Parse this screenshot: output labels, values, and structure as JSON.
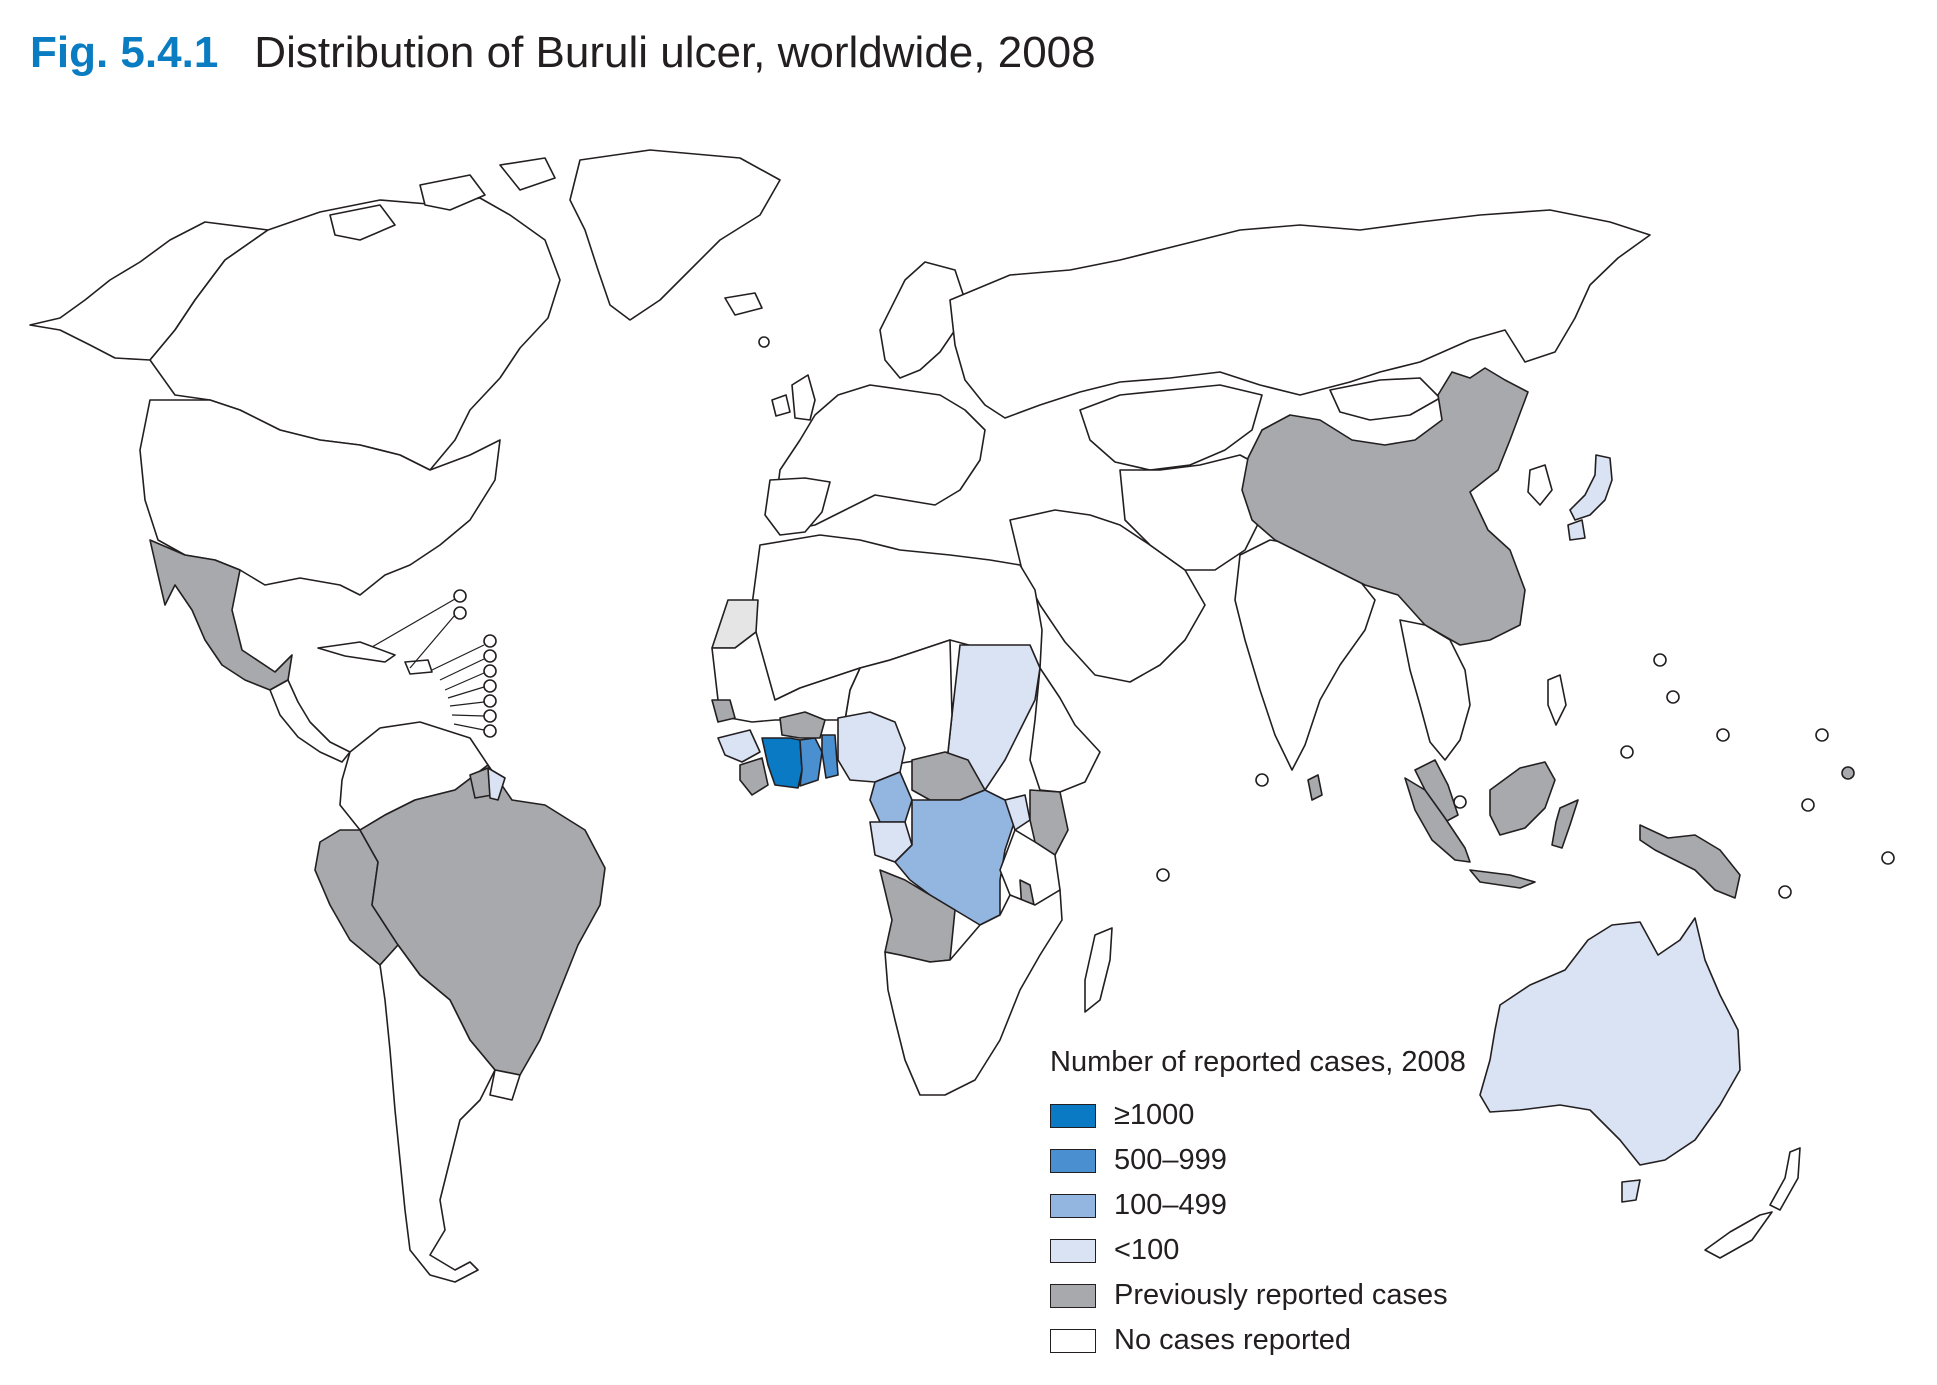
{
  "title": {
    "figure_number": "Fig. 5.4.1",
    "text": "Distribution of Buruli ulcer, worldwide, 2008"
  },
  "legend": {
    "title": "Number of reported cases, 2008",
    "items": [
      {
        "label": "≥1000",
        "color": "#0a7ac4"
      },
      {
        "label": "500–999",
        "color": "#4a8fd0"
      },
      {
        "label": "100–499",
        "color": "#93b6e1"
      },
      {
        "label": "<100",
        "color": "#d9e3f3"
      },
      {
        "label": "Previously reported cases",
        "color": "#a7a9ac"
      },
      {
        "label": "No cases reported",
        "color": "#ffffff"
      }
    ]
  },
  "colors": {
    "ge1000": "#0a7ac4",
    "c500_999": "#4a8fd0",
    "c100_499": "#93b6e1",
    "lt100": "#d9e3f3",
    "previous": "#a7a9ac",
    "none": "#ffffff",
    "border": "#231f20",
    "title_accent": "#0a7cc1"
  }
}
